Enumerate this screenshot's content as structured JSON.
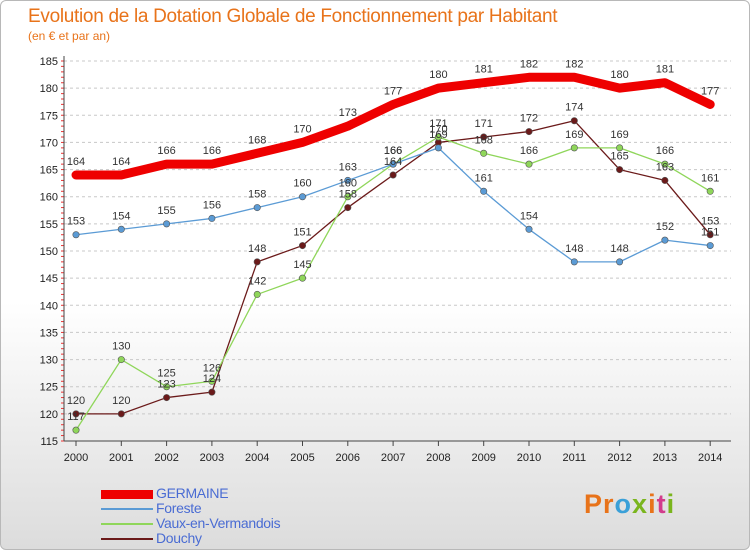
{
  "header": {
    "title": "Evolution de la Dotation Globale de Fonctionnement par Habitant",
    "subtitle": "(en € et par an)"
  },
  "logo": {
    "text": "Proxiti",
    "colors": [
      "#e8731a",
      "#e8731a",
      "#3aa0d8",
      "#7ab51d",
      "#e8731a",
      "#d23c8c",
      "#7ab51d"
    ]
  },
  "chart_data": {
    "type": "line",
    "title": "Evolution de la Dotation Globale de Fonctionnement par Habitant",
    "subtitle": "(en € et par an)",
    "xlabel": "",
    "ylabel": "",
    "x": [
      "2000",
      "2001",
      "2002",
      "2003",
      "2004",
      "2005",
      "2006",
      "2007",
      "2008",
      "2009",
      "2010",
      "2011",
      "2012",
      "2013",
      "2014"
    ],
    "ylim": [
      115,
      185
    ],
    "yticks": [
      115,
      120,
      125,
      130,
      135,
      140,
      145,
      150,
      155,
      160,
      165,
      170,
      175,
      180,
      185
    ],
    "grid": "horizontal-dashed",
    "legend_position": "bottom-left",
    "series": [
      {
        "name": "GERMAINE",
        "color": "#ee0000",
        "values": [
          164,
          164,
          166,
          166,
          168,
          170,
          173,
          177,
          180,
          181,
          182,
          182,
          180,
          181,
          177
        ]
      },
      {
        "name": "Foreste",
        "color": "#5b9bd5",
        "values": [
          153,
          154,
          155,
          156,
          158,
          160,
          163,
          166,
          169,
          161,
          154,
          148,
          148,
          152,
          151
        ]
      },
      {
        "name": "Vaux-en-Vermandois",
        "color": "#8fd65a",
        "values": [
          117,
          130,
          125,
          126,
          142,
          145,
          160,
          166,
          171,
          168,
          166,
          169,
          169,
          166,
          161
        ]
      },
      {
        "name": "Douchy",
        "color": "#6b1a1a",
        "values": [
          120,
          120,
          123,
          124,
          148,
          151,
          158,
          164,
          170,
          171,
          172,
          174,
          165,
          163,
          153
        ]
      }
    ]
  }
}
